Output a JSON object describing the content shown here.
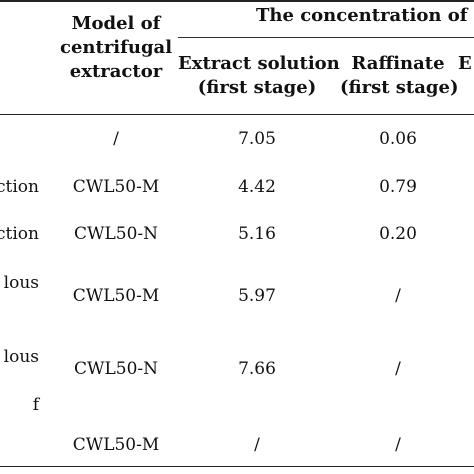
{
  "header": {
    "model_col": [
      "Model of",
      "centrifugal",
      "extractor"
    ],
    "group_title": "The concentration of s",
    "extract_col": [
      "Extract solution",
      "(first stage)"
    ],
    "raffinate_col": [
      "Raffinate",
      "(first stage)"
    ],
    "edge_col": "E"
  },
  "rows": [
    {
      "left": [
        "",
        ""
      ],
      "model": "/",
      "extract": "7.05",
      "raffinate": "0.06"
    },
    {
      "left": [
        "ction"
      ],
      "model": "CWL50-M",
      "extract": "4.42",
      "raffinate": "0.79"
    },
    {
      "left": [
        "ction"
      ],
      "model": "CWL50-N",
      "extract": "5.16",
      "raffinate": "0.20"
    },
    {
      "left": [
        "lous",
        ""
      ],
      "model": "CWL50-M",
      "extract": "5.97",
      "raffinate": "/"
    },
    {
      "left": [
        "lous",
        ""
      ],
      "model": "CWL50-N",
      "extract": "7.66",
      "raffinate": "/"
    },
    {
      "left": [
        "f",
        ""
      ],
      "model": "CWL50-M",
      "extract": "/",
      "raffinate": "/"
    }
  ]
}
